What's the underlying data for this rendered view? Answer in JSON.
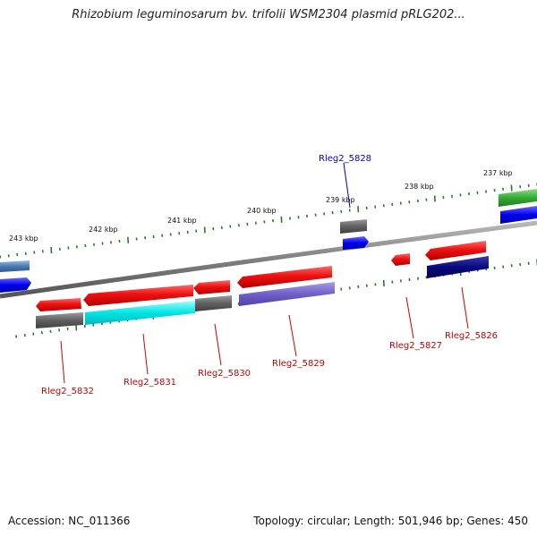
{
  "title": "Rhizobium leguminosarum bv. trifolii WSM2304 plasmid pRLG202...",
  "footer": {
    "accession": "Accession: NC_011366",
    "summary": "Topology: circular; Length: 501,946 bp; Genes: 450"
  },
  "ruler": {
    "ticks": [
      "243 kbp",
      "242 kbp",
      "241 kbp",
      "240 kbp",
      "239 kbp",
      "238 kbp",
      "237 kbp"
    ]
  },
  "genes": [
    {
      "label": "Rleg2_5832",
      "color": "#cc0000"
    },
    {
      "label": "Rleg2_5831",
      "color": "#cc0000"
    },
    {
      "label": "Rleg2_5830",
      "color": "#cc0000"
    },
    {
      "label": "Rleg2_5829",
      "color": "#cc0000"
    },
    {
      "label": "Rleg2_5828",
      "color": "#0000cc"
    },
    {
      "label": "Rleg2_5827",
      "color": "#cc0000"
    },
    {
      "label": "Rleg2_5826",
      "color": "#cc0000"
    }
  ],
  "colors": {
    "backbone": "#808080",
    "tick": "#2a7a2a",
    "cds_red": "#ee1111",
    "cog_gray": "#606060",
    "cog_cyan": "#00e5e5",
    "cog_purple": "#7060c8",
    "cog_navy": "#0a0a80",
    "cog_blue": "#0000ee",
    "cog_green": "#33aa33",
    "cog_steel": "#4a7ab0"
  }
}
